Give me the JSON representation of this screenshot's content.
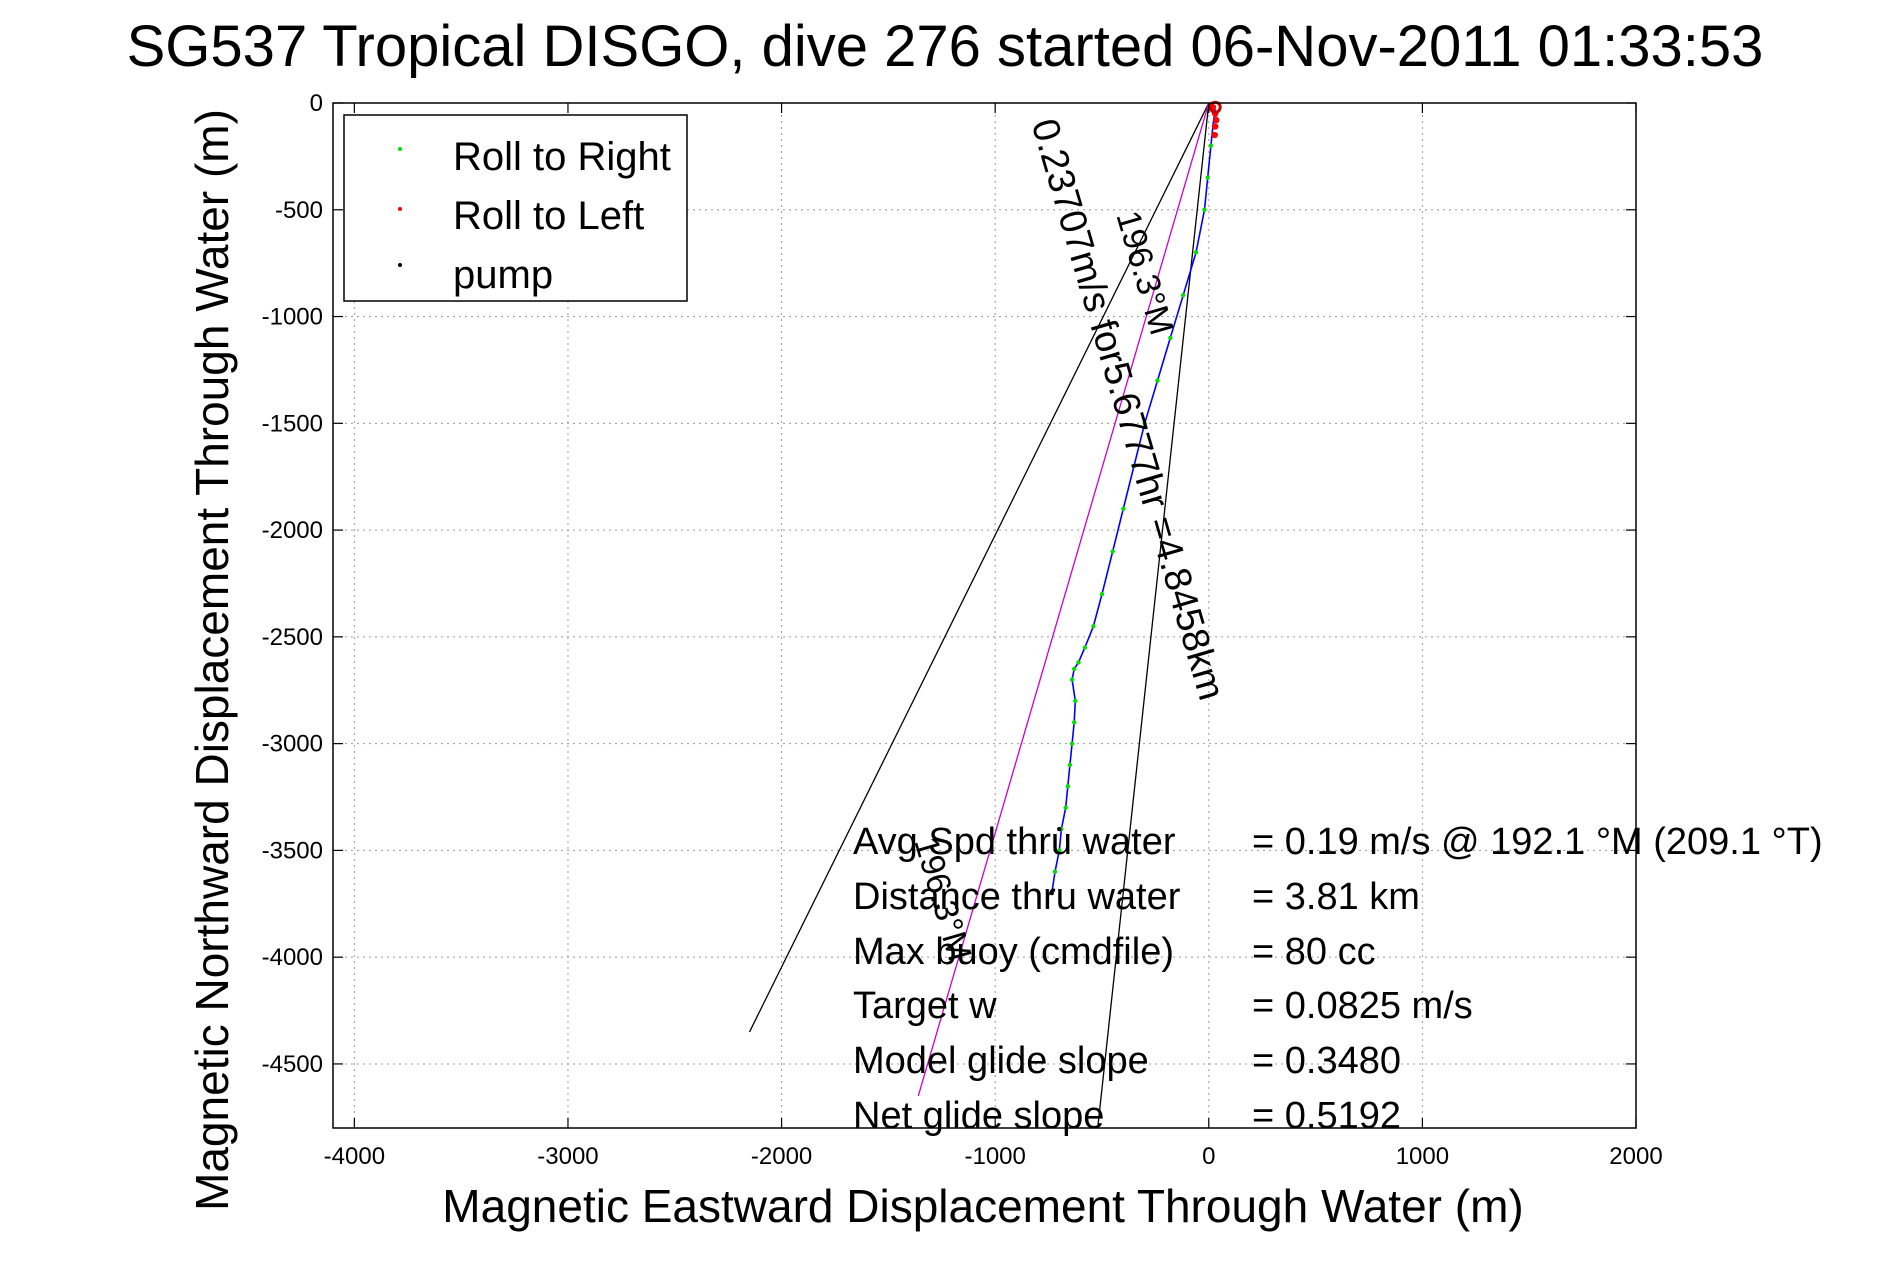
{
  "chart_data": {
    "type": "line",
    "title": "SG537 Tropical DISGO, dive 276 started 06-Nov-2011 01:33:53",
    "xlabel": "Magnetic Eastward Displacement Through Water (m)",
    "ylabel": "Magnetic Northward Displacement Through Water (m)",
    "xlim": [
      -4100,
      2000
    ],
    "ylim": [
      -4800,
      0
    ],
    "xticks": [
      -4000,
      -3000,
      -2000,
      -1000,
      0,
      1000,
      2000
    ],
    "yticks": [
      0,
      -500,
      -1000,
      -1500,
      -2000,
      -2500,
      -3000,
      -3500,
      -4000,
      -4500
    ],
    "xtick_labels": [
      "-4000",
      "-3000",
      "-2000",
      "-1000",
      "0",
      "1000",
      "2000"
    ],
    "ytick_labels": [
      "0",
      "-500",
      "-1000",
      "-1500",
      "-2000",
      "-2500",
      "-3000",
      "-3500",
      "-4000",
      "-4500"
    ],
    "grid": true,
    "legend_position": "top-left",
    "legend": [
      {
        "label": "Roll to Right",
        "color": "#00dd00"
      },
      {
        "label": "Roll to Left",
        "color": "#ff0000"
      },
      {
        "label": "pump",
        "color": "#000000"
      }
    ],
    "track": {
      "color": "#0000ff",
      "x": [
        30,
        20,
        10,
        -5,
        -20,
        -60,
        -120,
        -180,
        -240,
        -300,
        -350,
        -400,
        -450,
        -500,
        -540,
        -580,
        -610,
        -630,
        -640,
        -625,
        -630,
        -640,
        -650,
        -660,
        -670,
        -690,
        -700,
        -720,
        -735
      ],
      "y": [
        -30,
        -100,
        -200,
        -350,
        -500,
        -700,
        -900,
        -1100,
        -1300,
        -1500,
        -1700,
        -1900,
        -2100,
        -2300,
        -2450,
        -2550,
        -2620,
        -2650,
        -2700,
        -2800,
        -2900,
        -3000,
        -3100,
        -3200,
        -3300,
        -3400,
        -3500,
        -3600,
        -3700
      ]
    },
    "series": [
      {
        "name": "Roll to Right",
        "color": "#00dd00",
        "x": [
          10,
          -5,
          -20,
          -60,
          -120,
          -180,
          -240,
          -300,
          -350,
          -400,
          -450,
          -500,
          -540,
          -580,
          -610,
          -630,
          -640,
          -625,
          -630,
          -640,
          -650,
          -660,
          -670,
          -690,
          -700,
          -720
        ],
        "y": [
          -200,
          -350,
          -500,
          -700,
          -900,
          -1100,
          -1300,
          -1500,
          -1700,
          -1900,
          -2100,
          -2300,
          -2450,
          -2550,
          -2620,
          -2650,
          -2700,
          -2800,
          -2900,
          -3000,
          -3100,
          -3200,
          -3300,
          -3400,
          -3500,
          -3600
        ]
      },
      {
        "name": "Roll to Left",
        "color": "#ff0000",
        "x": [
          20,
          30,
          35,
          30,
          28
        ],
        "y": [
          -20,
          -50,
          -80,
          -110,
          -150
        ]
      },
      {
        "name": "pump",
        "color": "#000000",
        "x": [
          -700,
          -735
        ],
        "y": [
          -3400,
          -3700
        ]
      }
    ],
    "reference_lines": [
      {
        "color": "#000000",
        "x": [
          0,
          -2150
        ],
        "y": [
          0,
          -4350
        ]
      },
      {
        "color": "#000000",
        "x": [
          0,
          -520
        ],
        "y": [
          0,
          -4800
        ]
      },
      {
        "color": "#cc00cc",
        "x": [
          0,
          -1360
        ],
        "y": [
          0,
          -4650
        ]
      }
    ],
    "line_labels": [
      "0.23707m/s for5.6777hr =4.8458km",
      "196.3°M",
      "196.3°M"
    ],
    "stats": [
      {
        "label": "Avg Spd thru water",
        "value": "=  0.19 m/s @ 192.1 °M (209.1 °T)"
      },
      {
        "label": "Distance thru water",
        "value": "=  3.81 km"
      },
      {
        "label": "Max buoy (cmdfile)",
        "value": "= 80 cc"
      },
      {
        "label": "Target w",
        "value": "= 0.0825 m/s"
      },
      {
        "label": "Model glide slope",
        "value": "= 0.3480"
      },
      {
        "label": "Net glide slope",
        "value": "= 0.5192"
      }
    ]
  }
}
